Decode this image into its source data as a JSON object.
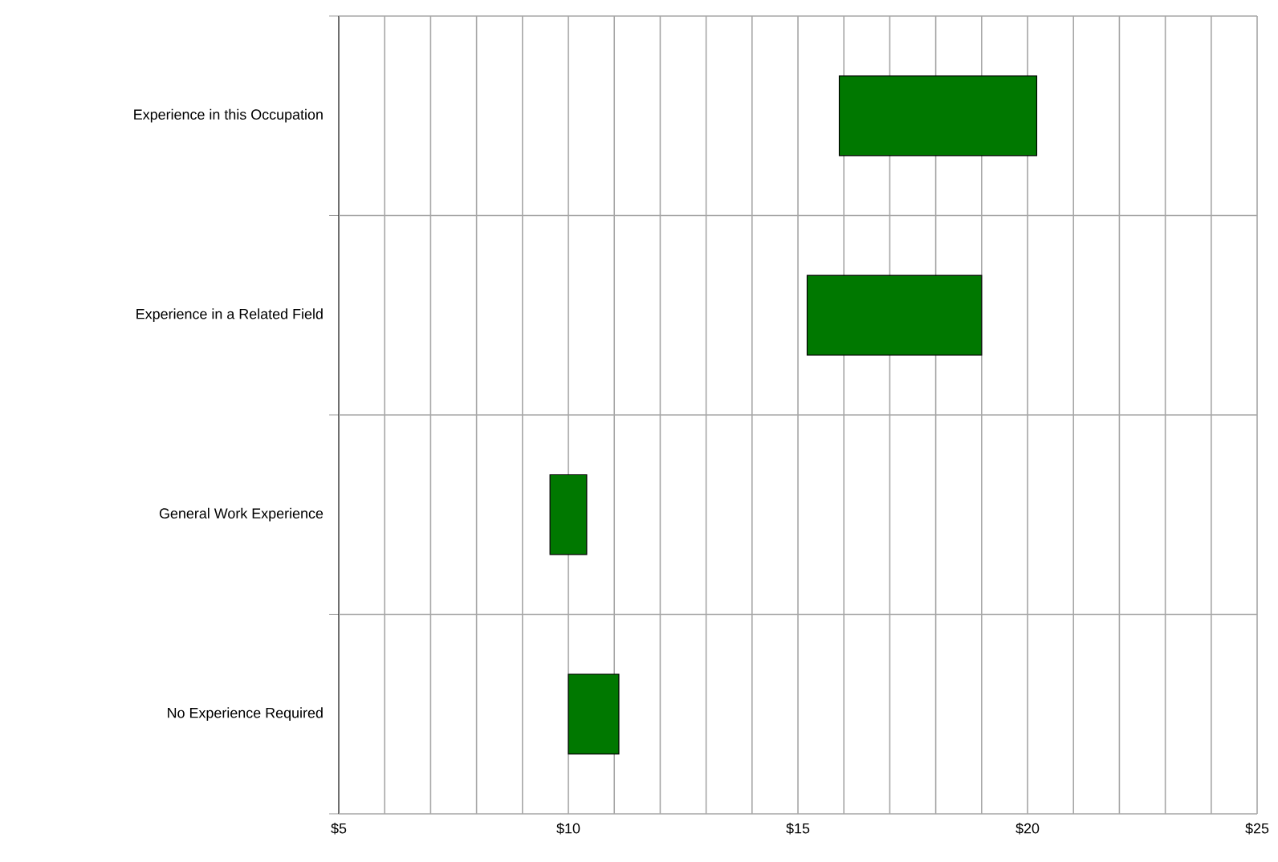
{
  "chart_data": {
    "type": "bar",
    "orientation": "horizontal",
    "categories": [
      "Experience in this Occupation",
      "Experience in a Related Field",
      "General Work Experience",
      "No Experience Required"
    ],
    "base": [
      15.9,
      15.2,
      9.6,
      10.0
    ],
    "values": [
      4.3,
      3.8,
      0.8,
      1.1
    ],
    "color": "#007800",
    "xlim": [
      5,
      25
    ],
    "xticks": [
      {
        "value": 5,
        "label": "$5"
      },
      {
        "value": 6,
        "label": null
      },
      {
        "value": 7,
        "label": null
      },
      {
        "value": 8,
        "label": null
      },
      {
        "value": 9,
        "label": null
      },
      {
        "value": 10,
        "label": "$10"
      },
      {
        "value": 11,
        "label": null
      },
      {
        "value": 12,
        "label": null
      },
      {
        "value": 13,
        "label": null
      },
      {
        "value": 14,
        "label": null
      },
      {
        "value": 15,
        "label": "$15"
      },
      {
        "value": 16,
        "label": null
      },
      {
        "value": 17,
        "label": null
      },
      {
        "value": 18,
        "label": null
      },
      {
        "value": 19,
        "label": null
      },
      {
        "value": 20,
        "label": "$20"
      },
      {
        "value": 21,
        "label": null
      },
      {
        "value": 22,
        "label": null
      },
      {
        "value": 23,
        "label": null
      },
      {
        "value": 24,
        "label": null
      },
      {
        "value": 25,
        "label": "$25"
      }
    ],
    "grid": true
  }
}
